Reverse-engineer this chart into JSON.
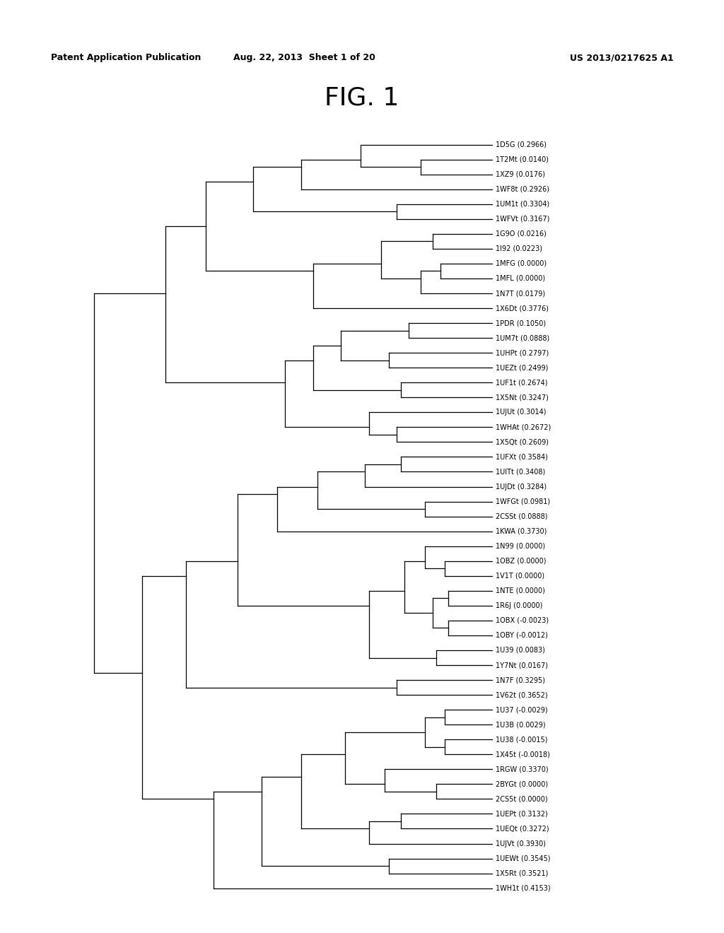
{
  "title": "FIG. 1",
  "header_left": "Patent Application Publication",
  "header_center": "Aug. 22, 2013  Sheet 1 of 20",
  "header_right": "US 2013/0217625 A1",
  "leaves": [
    "1D5G (0.2966)",
    "1T2Mt (0.0140)",
    "1XZ9 (0.0176)",
    "1WF8t (0.2926)",
    "1UM1t (0.3304)",
    "1WFVt (0.3167)",
    "1G9O (0.0216)",
    "1I92 (0.0223)",
    "1MFG (0.0000)",
    "1MFL (0.0000)",
    "1N7T (0.0179)",
    "1X6Dt (0.3776)",
    "1PDR (0.1050)",
    "1UM7t (0.0888)",
    "1UHPt (0.2797)",
    "1UEZt (0.2499)",
    "1UF1t (0.2674)",
    "1X5Nt (0.3247)",
    "1UJUt (0.3014)",
    "1WHAt (0.2672)",
    "1X5Qt (0.2609)",
    "1UFXt (0.3584)",
    "1UITt (0.3408)",
    "1UJDt (0.3284)",
    "1WFGt (0.0981)",
    "2CSSt (0.0888)",
    "1KWA (0.3730)",
    "1N99 (0.0000)",
    "1OBZ (0.0000)",
    "1V1T (0.0000)",
    "1NTE (0.0000)",
    "1R6J (0.0000)",
    "1OBX (-0.0023)",
    "1OBY (-0.0012)",
    "1U39 (0.0083)",
    "1Y7Nt (0.0167)",
    "1N7F (0.3295)",
    "1V62t (0.3652)",
    "1U37 (-0.0029)",
    "1U3B (0.0029)",
    "1U38 (-0.0015)",
    "1X45t (-0.0018)",
    "1RGW (0.3370)",
    "2BYGt (0.0000)",
    "2CS5t (0.0000)",
    "1UEPt (0.3132)",
    "1UEQt (0.3272)",
    "1UJVt (0.3930)",
    "1UEWt (0.3545)",
    "1X5Rt (0.3521)",
    "1WH1t (0.4153)"
  ],
  "background_color": "#ffffff",
  "line_color": "#000000",
  "text_color": "#000000",
  "font_size": 7.0,
  "title_font_size": 26,
  "header_font_size": 9.0
}
